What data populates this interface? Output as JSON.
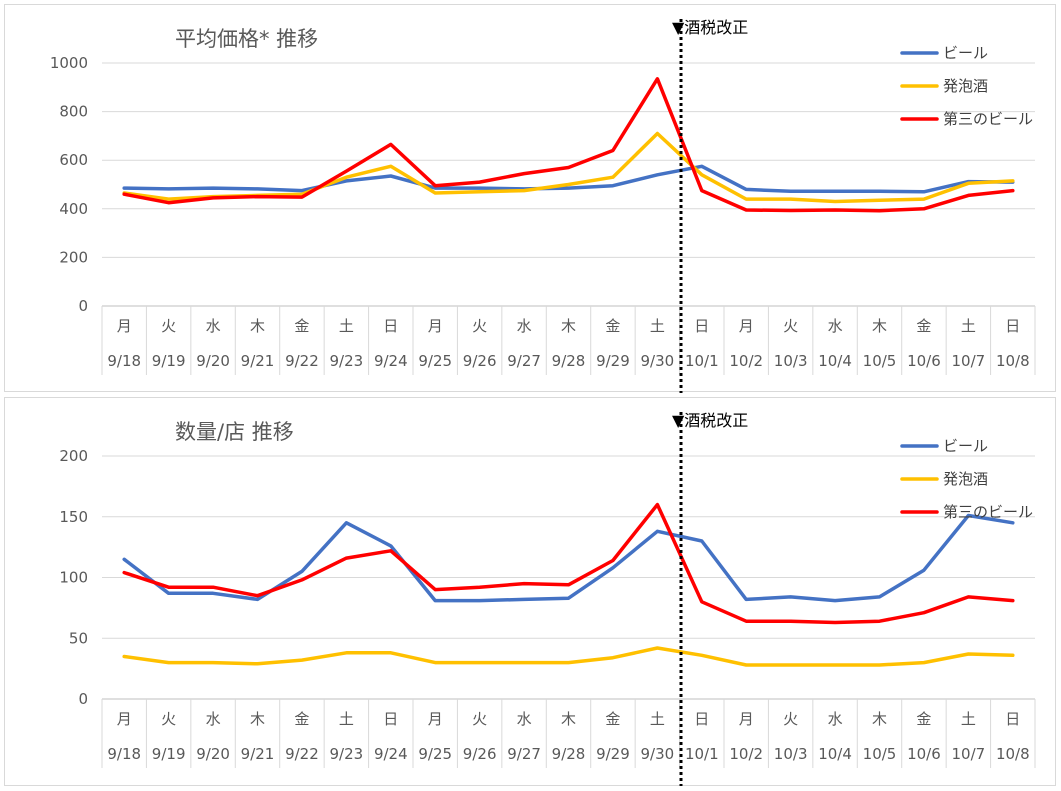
{
  "chart_data": [
    {
      "type": "line",
      "title": "平均価格* 推移",
      "annotation": "▼酒税改正",
      "x_weekday": [
        "月",
        "火",
        "水",
        "木",
        "金",
        "土",
        "日",
        "月",
        "火",
        "水",
        "木",
        "金",
        "土",
        "日",
        "月",
        "火",
        "水",
        "木",
        "金",
        "土",
        "日"
      ],
      "x_date": [
        "9/18",
        "9/19",
        "9/20",
        "9/21",
        "9/22",
        "9/23",
        "9/24",
        "9/25",
        "9/26",
        "9/27",
        "9/28",
        "9/29",
        "9/30",
        "10/1",
        "10/2",
        "10/3",
        "10/4",
        "10/5",
        "10/6",
        "10/7",
        "10/8"
      ],
      "yticks": [
        "0",
        "200",
        "400",
        "600",
        "800",
        "1000"
      ],
      "ylim": [
        0,
        1000
      ],
      "grid": true,
      "legend_position": "top-right",
      "series": [
        {
          "name": "ビール",
          "color": "#4472C4",
          "values": [
            485,
            482,
            485,
            482,
            475,
            515,
            535,
            485,
            485,
            482,
            485,
            495,
            540,
            575,
            480,
            472,
            472,
            472,
            470,
            512,
            510
          ]
        },
        {
          "name": "発泡酒",
          "color": "#FFC000",
          "values": [
            465,
            440,
            450,
            455,
            460,
            530,
            575,
            465,
            470,
            475,
            500,
            530,
            710,
            540,
            440,
            440,
            430,
            435,
            440,
            505,
            515
          ]
        },
        {
          "name": "第三のビール",
          "color": "#FF0000",
          "values": [
            460,
            425,
            445,
            450,
            448,
            555,
            665,
            495,
            510,
            545,
            570,
            640,
            935,
            475,
            395,
            393,
            395,
            392,
            400,
            455,
            475
          ]
        }
      ]
    },
    {
      "type": "line",
      "title": "数量/店 推移",
      "annotation": "▼酒税改正",
      "x_weekday": [
        "月",
        "火",
        "水",
        "木",
        "金",
        "土",
        "日",
        "月",
        "火",
        "水",
        "木",
        "金",
        "土",
        "日",
        "月",
        "火",
        "水",
        "木",
        "金",
        "土",
        "日"
      ],
      "x_date": [
        "9/18",
        "9/19",
        "9/20",
        "9/21",
        "9/22",
        "9/23",
        "9/24",
        "9/25",
        "9/26",
        "9/27",
        "9/28",
        "9/29",
        "9/30",
        "10/1",
        "10/2",
        "10/3",
        "10/4",
        "10/5",
        "10/6",
        "10/7",
        "10/8"
      ],
      "yticks": [
        "0",
        "50",
        "100",
        "150",
        "200"
      ],
      "ylim": [
        0,
        200
      ],
      "grid": true,
      "legend_position": "top-right",
      "series": [
        {
          "name": "ビール",
          "color": "#4472C4",
          "values": [
            115,
            87,
            87,
            82,
            105,
            145,
            126,
            81,
            81,
            82,
            83,
            108,
            138,
            130,
            82,
            84,
            81,
            84,
            106,
            151,
            145
          ]
        },
        {
          "name": "発泡酒",
          "color": "#FFC000",
          "values": [
            35,
            30,
            30,
            29,
            32,
            38,
            38,
            30,
            30,
            30,
            30,
            34,
            42,
            36,
            28,
            28,
            28,
            28,
            30,
            37,
            36
          ]
        },
        {
          "name": "第三のビール",
          "color": "#FF0000",
          "values": [
            104,
            92,
            92,
            85,
            98,
            116,
            122,
            90,
            92,
            95,
            94,
            114,
            160,
            80,
            64,
            64,
            63,
            64,
            71,
            84,
            81
          ]
        }
      ]
    }
  ]
}
